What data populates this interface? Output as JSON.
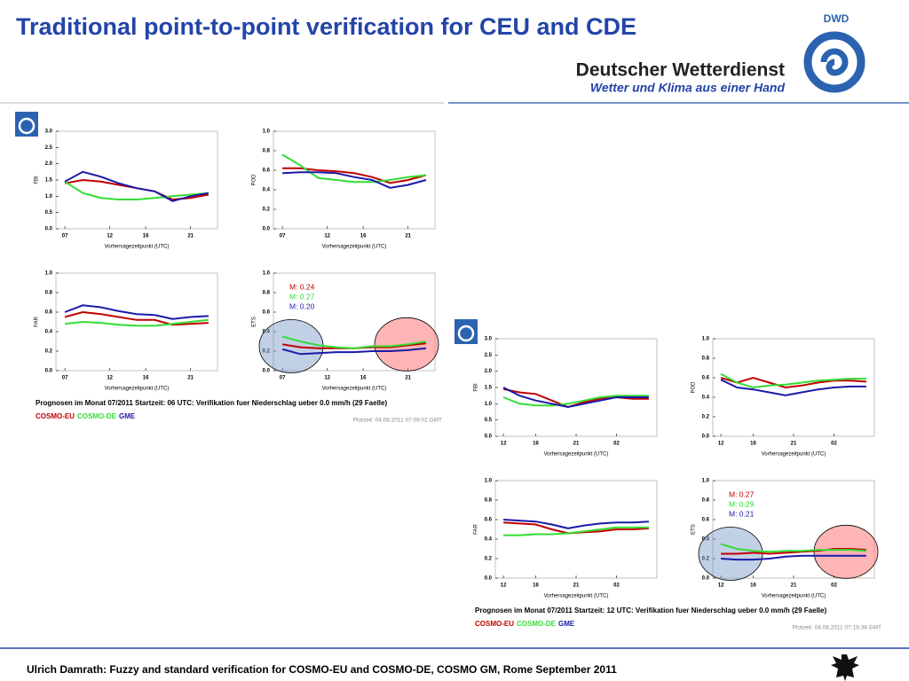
{
  "header": {
    "title": "Traditional point-to-point verification for CEU and CDE",
    "logo_text": "DWD",
    "org": "Deutscher Wetterdienst",
    "slogan": "Wetter und Klima aus einer Hand"
  },
  "footer": "Ulrich Damrath: Fuzzy and standard verification for COSMO-EU and COSMO-DE, COSMO GM, Rome September 2011",
  "panels": [
    {
      "caption": "Prognosen im Monat 07/2011 Startzeit: 06 UTC: Verifikation fuer Niederschlag ueber  0.0 mm/h (29 Faelle)",
      "plot_time": "Plotzeit: 04.08.2011  07:09:02 GMT",
      "legend": [
        {
          "name": "COSMO-EU",
          "color": "#c00000"
        },
        {
          "name": "COSMO-DE",
          "color": "#33dd33"
        },
        {
          "name": "GME",
          "color": "#1a1aa8"
        }
      ],
      "charts": [
        {
          "type": "line",
          "ylabel": "FBI",
          "xlabel": "Vorhersagezeitpunkt (UTC)",
          "x": [
            7,
            9,
            11,
            13,
            15,
            17,
            19,
            21,
            23
          ],
          "xlim": [
            6,
            24
          ],
          "xticks": [
            {
              "value": 7,
              "label": "07"
            },
            12,
            16,
            21
          ],
          "ylim": [
            0,
            3
          ],
          "yticks": [
            {
              "value": 0,
              "label": "0.0"
            },
            {
              "value": 0.5,
              "label": "0.5"
            },
            {
              "value": 1,
              "label": "1.0"
            },
            {
              "value": 1.5,
              "label": "1.5"
            },
            {
              "value": 2,
              "label": "2.0"
            },
            {
              "value": 2.5,
              "label": "2.5"
            },
            {
              "value": 3,
              "label": "3.0"
            }
          ],
          "series": [
            {
              "color": "#c00000",
              "values": [
                1.4,
                1.5,
                1.45,
                1.35,
                1.25,
                1.15,
                0.9,
                0.95,
                1.05
              ]
            },
            {
              "color": "#33dd33",
              "values": [
                1.45,
                1.1,
                0.95,
                0.9,
                0.9,
                0.95,
                1.0,
                1.05,
                1.1
              ]
            },
            {
              "color": "#1a1aa8",
              "values": [
                1.45,
                1.75,
                1.6,
                1.4,
                1.25,
                1.15,
                0.85,
                1.0,
                1.1
              ]
            }
          ]
        },
        {
          "type": "line",
          "ylabel": "POD",
          "xlabel": "Vorhersagezeitpunkt (UTC)",
          "x": [
            7,
            9,
            11,
            13,
            15,
            17,
            19,
            21,
            23
          ],
          "xlim": [
            6,
            24
          ],
          "xticks": [
            {
              "value": 7,
              "label": "07"
            },
            12,
            16,
            21
          ],
          "ylim": [
            0,
            1
          ],
          "yticks": [
            {
              "value": 0,
              "label": "0.0"
            },
            0.2,
            0.4,
            0.6,
            0.8,
            {
              "value": 1,
              "label": "1.0"
            }
          ],
          "series": [
            {
              "color": "#c00000",
              "values": [
                0.62,
                0.62,
                0.6,
                0.59,
                0.57,
                0.53,
                0.47,
                0.5,
                0.55
              ]
            },
            {
              "color": "#33dd33",
              "values": [
                0.76,
                0.65,
                0.52,
                0.5,
                0.48,
                0.48,
                0.5,
                0.53,
                0.55
              ]
            },
            {
              "color": "#1a1aa8",
              "values": [
                0.57,
                0.58,
                0.58,
                0.57,
                0.53,
                0.5,
                0.42,
                0.45,
                0.5
              ]
            }
          ]
        },
        {
          "type": "line",
          "ylabel": "FAR",
          "xlabel": "Vorhersagezeitpunkt (UTC)",
          "x": [
            7,
            9,
            11,
            13,
            15,
            17,
            19,
            21,
            23
          ],
          "xlim": [
            6,
            24
          ],
          "xticks": [
            {
              "value": 7,
              "label": "07"
            },
            12,
            16,
            21
          ],
          "ylim": [
            0,
            1
          ],
          "yticks": [
            {
              "value": 0,
              "label": "0.0"
            },
            0.2,
            0.4,
            0.6,
            0.8,
            {
              "value": 1,
              "label": "1.0"
            }
          ],
          "series": [
            {
              "color": "#c00000",
              "values": [
                0.55,
                0.6,
                0.58,
                0.55,
                0.52,
                0.52,
                0.47,
                0.48,
                0.49
              ]
            },
            {
              "color": "#33dd33",
              "values": [
                0.48,
                0.5,
                0.49,
                0.47,
                0.46,
                0.46,
                0.48,
                0.5,
                0.52
              ]
            },
            {
              "color": "#1a1aa8",
              "values": [
                0.6,
                0.67,
                0.65,
                0.61,
                0.58,
                0.57,
                0.53,
                0.55,
                0.56
              ]
            }
          ]
        },
        {
          "type": "line",
          "ylabel": "ETS",
          "xlabel": "Vorhersagezeitpunkt (UTC)",
          "x": [
            7,
            9,
            11,
            13,
            15,
            17,
            19,
            21,
            23
          ],
          "xlim": [
            6,
            24
          ],
          "xticks": [
            {
              "value": 7,
              "label": "07"
            },
            12,
            16,
            21
          ],
          "ylim": [
            0,
            1
          ],
          "yticks": [
            {
              "value": 0,
              "label": "0.0"
            },
            0.2,
            0.4,
            0.6,
            0.8,
            {
              "value": 1,
              "label": "1.0"
            }
          ],
          "annotations": [
            {
              "text": "M:  0.24",
              "color": "#c00000"
            },
            {
              "text": "M:  0.27",
              "color": "#33dd33"
            },
            {
              "text": "M:  0.20",
              "color": "#1a1aa8"
            }
          ],
          "series": [
            {
              "color": "#c00000",
              "values": [
                0.27,
                0.24,
                0.23,
                0.23,
                0.23,
                0.24,
                0.24,
                0.26,
                0.28
              ]
            },
            {
              "color": "#33dd33",
              "values": [
                0.35,
                0.3,
                0.26,
                0.24,
                0.23,
                0.25,
                0.25,
                0.27,
                0.3
              ]
            },
            {
              "color": "#1a1aa8",
              "values": [
                0.22,
                0.17,
                0.18,
                0.19,
                0.19,
                0.2,
                0.2,
                0.21,
                0.23
              ]
            }
          ]
        }
      ]
    },
    {
      "caption": "Prognosen im Monat 07/2011 Startzeit: 12 UTC: Verifikation fuer Niederschlag ueber  0.0 mm/h (29 Faelle)",
      "plot_time": "Plotzeit: 04.08.2011  07:19:38 GMT",
      "legend": [
        {
          "name": "COSMO-EU",
          "color": "#c00000"
        },
        {
          "name": "COSMO-DE",
          "color": "#33dd33"
        },
        {
          "name": "GME",
          "color": "#1a1aa8"
        }
      ],
      "charts": [
        {
          "type": "line",
          "ylabel": "FBI",
          "xlabel": "Vorhersagezeitpunkt (UTC)",
          "x": [
            12,
            14,
            16,
            18,
            20,
            22,
            24,
            26,
            28,
            30
          ],
          "xlim": [
            11,
            31
          ],
          "xticks": [
            12,
            16,
            21,
            {
              "value": 26,
              "label": "02"
            }
          ],
          "ylim": [
            0,
            3
          ],
          "yticks": [
            {
              "value": 0,
              "label": "0.0"
            },
            {
              "value": 0.5,
              "label": "0.5"
            },
            {
              "value": 1,
              "label": "1.0"
            },
            {
              "value": 1.5,
              "label": "1.5"
            },
            {
              "value": 2,
              "label": "2.0"
            },
            {
              "value": 2.5,
              "label": "2.5"
            },
            {
              "value": 3,
              "label": "3.0"
            }
          ],
          "series": [
            {
              "color": "#c00000",
              "values": [
                1.45,
                1.35,
                1.3,
                1.1,
                0.9,
                1.05,
                1.15,
                1.2,
                1.15,
                1.15
              ]
            },
            {
              "color": "#33dd33",
              "values": [
                1.2,
                1.0,
                0.95,
                0.95,
                1.0,
                1.1,
                1.2,
                1.25,
                1.25,
                1.25
              ]
            },
            {
              "color": "#1a1aa8",
              "values": [
                1.5,
                1.25,
                1.1,
                1.0,
                0.9,
                1.0,
                1.1,
                1.2,
                1.2,
                1.2
              ]
            }
          ]
        },
        {
          "type": "line",
          "ylabel": "POD",
          "xlabel": "Vorhersagezeitpunkt (UTC)",
          "x": [
            12,
            14,
            16,
            18,
            20,
            22,
            24,
            26,
            28,
            30
          ],
          "xlim": [
            11,
            31
          ],
          "xticks": [
            12,
            16,
            21,
            {
              "value": 26,
              "label": "02"
            }
          ],
          "ylim": [
            0,
            1
          ],
          "yticks": [
            {
              "value": 0,
              "label": "0.0"
            },
            0.2,
            0.4,
            0.6,
            0.8,
            {
              "value": 1,
              "label": "1.0"
            }
          ],
          "series": [
            {
              "color": "#c00000",
              "values": [
                0.6,
                0.55,
                0.6,
                0.55,
                0.5,
                0.52,
                0.55,
                0.57,
                0.57,
                0.56
              ]
            },
            {
              "color": "#33dd33",
              "values": [
                0.64,
                0.55,
                0.5,
                0.52,
                0.53,
                0.55,
                0.57,
                0.58,
                0.59,
                0.59
              ]
            },
            {
              "color": "#1a1aa8",
              "values": [
                0.58,
                0.5,
                0.48,
                0.45,
                0.42,
                0.45,
                0.48,
                0.5,
                0.51,
                0.51
              ]
            }
          ]
        },
        {
          "type": "line",
          "ylabel": "FAR",
          "xlabel": "Vorhersagezeitpunkt (UTC)",
          "x": [
            12,
            14,
            16,
            18,
            20,
            22,
            24,
            26,
            28,
            30
          ],
          "xlim": [
            11,
            31
          ],
          "xticks": [
            12,
            16,
            21,
            {
              "value": 26,
              "label": "02"
            }
          ],
          "ylim": [
            0,
            1
          ],
          "yticks": [
            {
              "value": 0,
              "label": "0.0"
            },
            0.2,
            0.4,
            0.6,
            0.8,
            {
              "value": 1,
              "label": "1.0"
            }
          ],
          "series": [
            {
              "color": "#c00000",
              "values": [
                0.57,
                0.56,
                0.55,
                0.5,
                0.46,
                0.47,
                0.48,
                0.5,
                0.5,
                0.51
              ]
            },
            {
              "color": "#33dd33",
              "values": [
                0.44,
                0.44,
                0.45,
                0.45,
                0.46,
                0.48,
                0.5,
                0.52,
                0.52,
                0.52
              ]
            },
            {
              "color": "#1a1aa8",
              "values": [
                0.6,
                0.59,
                0.58,
                0.55,
                0.51,
                0.54,
                0.56,
                0.57,
                0.57,
                0.58
              ]
            }
          ]
        },
        {
          "type": "line",
          "ylabel": "ETS",
          "xlabel": "Vorhersagezeitpunkt (UTC)",
          "x": [
            12,
            14,
            16,
            18,
            20,
            22,
            24,
            26,
            28,
            30
          ],
          "xlim": [
            11,
            31
          ],
          "xticks": [
            12,
            16,
            21,
            {
              "value": 26,
              "label": "02"
            }
          ],
          "ylim": [
            0,
            1
          ],
          "yticks": [
            {
              "value": 0,
              "label": "0.0"
            },
            0.2,
            0.4,
            0.6,
            0.8,
            {
              "value": 1,
              "label": "1.0"
            }
          ],
          "annotations": [
            {
              "text": "M:  0.27",
              "color": "#c00000"
            },
            {
              "text": "M:  0.29",
              "color": "#33dd33"
            },
            {
              "text": "M:  0.21",
              "color": "#1a1aa8"
            }
          ],
          "series": [
            {
              "color": "#c00000",
              "values": [
                0.25,
                0.25,
                0.26,
                0.25,
                0.26,
                0.27,
                0.28,
                0.3,
                0.3,
                0.29
              ]
            },
            {
              "color": "#33dd33",
              "values": [
                0.35,
                0.3,
                0.28,
                0.27,
                0.28,
                0.28,
                0.29,
                0.29,
                0.29,
                0.28
              ]
            },
            {
              "color": "#1a1aa8",
              "values": [
                0.2,
                0.19,
                0.19,
                0.2,
                0.22,
                0.23,
                0.23,
                0.23,
                0.23,
                0.23
              ]
            }
          ]
        }
      ]
    }
  ]
}
